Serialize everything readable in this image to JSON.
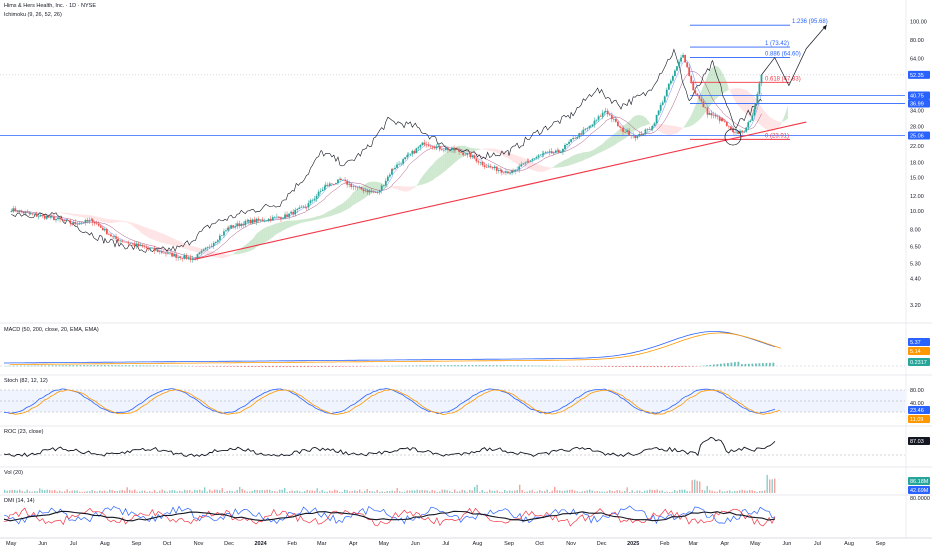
{
  "header": {
    "title": "Hims & Hers Health, Inc. · 1D · NYSE",
    "ichimoku": "Ichimoku (9, 26, 52, 26)"
  },
  "panels": {
    "macd": "MACD (50, 200, close, 20, EMA, EMA)",
    "stoch": "Stoch (82, 12, 12)",
    "roc": "ROC (23, close)",
    "vol": "Vol (20)",
    "dmi": "DMI (14, 14)"
  },
  "colors": {
    "up": "#26a69a",
    "down": "#ef5350",
    "blue": "#2962ff",
    "red": "#f23645",
    "orange": "#ff9800",
    "black": "#131722",
    "cloud_green": "#a5d6a7",
    "cloud_red": "#ffcdd2"
  },
  "chart_data": {
    "type": "candlestick",
    "scale": "log",
    "ylim": [
      2.6,
      130
    ],
    "x_ticks": [
      "May",
      "Jun",
      "Jul",
      "Aug",
      "Sep",
      "Oct",
      "Nov",
      "Dec",
      "2024",
      "Feb",
      "Mar",
      "Apr",
      "May",
      "Jun",
      "Jul",
      "Aug",
      "Sep",
      "Oct",
      "Nov",
      "Dec",
      "2025",
      "Feb",
      "Mar",
      "Apr",
      "May",
      "Jun",
      "Jul",
      "Aug",
      "Sep"
    ],
    "y_ticks": [
      "130.00",
      "100.00",
      "80.00",
      "64.00",
      "52.00",
      "34.00",
      "28.00",
      "22.00",
      "18.00",
      "15.00",
      "12.00",
      "10.00",
      "8.00",
      "6.50",
      "5.30",
      "4.40",
      "3.20"
    ],
    "price_anchors": [
      {
        "date": "2023-05-01",
        "close": 10.2
      },
      {
        "date": "2023-05-20",
        "close": 9.6
      },
      {
        "date": "2023-06-10",
        "close": 9.2
      },
      {
        "date": "2023-07-01",
        "close": 8.6
      },
      {
        "date": "2023-07-20",
        "close": 8.9
      },
      {
        "date": "2023-08-10",
        "close": 7.2
      },
      {
        "date": "2023-09-01",
        "close": 6.6
      },
      {
        "date": "2023-09-20",
        "close": 6.2
      },
      {
        "date": "2023-10-10",
        "close": 5.8
      },
      {
        "date": "2023-10-27",
        "close": 5.6
      },
      {
        "date": "2023-11-10",
        "close": 6.4
      },
      {
        "date": "2023-12-01",
        "close": 8.2
      },
      {
        "date": "2023-12-20",
        "close": 8.8
      },
      {
        "date": "2024-01-05",
        "close": 9.0
      },
      {
        "date": "2024-01-25",
        "close": 9.4
      },
      {
        "date": "2024-02-15",
        "close": 10.6
      },
      {
        "date": "2024-03-05",
        "close": 13.6
      },
      {
        "date": "2024-03-20",
        "close": 14.5
      },
      {
        "date": "2024-04-05",
        "close": 13.2
      },
      {
        "date": "2024-04-25",
        "close": 12.4
      },
      {
        "date": "2024-05-10",
        "close": 16.8
      },
      {
        "date": "2024-05-25",
        "close": 19.5
      },
      {
        "date": "2024-06-10",
        "close": 23.0
      },
      {
        "date": "2024-06-25",
        "close": 21.5
      },
      {
        "date": "2024-07-10",
        "close": 21.0
      },
      {
        "date": "2024-07-25",
        "close": 19.6
      },
      {
        "date": "2024-08-10",
        "close": 17.2
      },
      {
        "date": "2024-08-25",
        "close": 16.4
      },
      {
        "date": "2024-09-05",
        "close": 16.0
      },
      {
        "date": "2024-09-20",
        "close": 18.4
      },
      {
        "date": "2024-10-05",
        "close": 20.0
      },
      {
        "date": "2024-10-20",
        "close": 20.5
      },
      {
        "date": "2024-11-05",
        "close": 24.5
      },
      {
        "date": "2024-11-20",
        "close": 28.0
      },
      {
        "date": "2024-12-05",
        "close": 34.0
      },
      {
        "date": "2024-12-20",
        "close": 27.0
      },
      {
        "date": "2025-01-05",
        "close": 24.6
      },
      {
        "date": "2025-01-20",
        "close": 28.0
      },
      {
        "date": "2025-02-05",
        "close": 46.0
      },
      {
        "date": "2025-02-19",
        "close": 68.0
      },
      {
        "date": "2025-03-01",
        "close": 44.0
      },
      {
        "date": "2025-03-15",
        "close": 33.0
      },
      {
        "date": "2025-03-30",
        "close": 30.0
      },
      {
        "date": "2025-04-10",
        "close": 25.5
      },
      {
        "date": "2025-04-22",
        "close": 27.0
      },
      {
        "date": "2025-05-01",
        "close": 36.0
      },
      {
        "date": "2025-05-07",
        "close": 52.35
      }
    ],
    "compare_anchors": [
      {
        "date": "2023-05-01",
        "close": 9.8
      },
      {
        "date": "2023-06-15",
        "close": 9.4
      },
      {
        "date": "2023-08-01",
        "close": 7.0
      },
      {
        "date": "2023-09-15",
        "close": 6.1
      },
      {
        "date": "2023-10-15",
        "close": 6.4
      },
      {
        "date": "2023-11-15",
        "close": 8.6
      },
      {
        "date": "2023-12-15",
        "close": 9.8
      },
      {
        "date": "2024-01-20",
        "close": 11.0
      },
      {
        "date": "2024-02-15",
        "close": 15.5
      },
      {
        "date": "2024-03-01",
        "close": 20.5
      },
      {
        "date": "2024-03-25",
        "close": 17.5
      },
      {
        "date": "2024-04-15",
        "close": 21.5
      },
      {
        "date": "2024-05-05",
        "close": 30.0
      },
      {
        "date": "2024-06-01",
        "close": 28.0
      },
      {
        "date": "2024-07-01",
        "close": 22.0
      },
      {
        "date": "2024-08-01",
        "close": 19.5
      },
      {
        "date": "2024-09-01",
        "close": 20.5
      },
      {
        "date": "2024-10-01",
        "close": 26.5
      },
      {
        "date": "2024-11-01",
        "close": 32.0
      },
      {
        "date": "2024-11-25",
        "close": 44.0
      },
      {
        "date": "2024-12-20",
        "close": 36.0
      },
      {
        "date": "2025-01-15",
        "close": 42.0
      },
      {
        "date": "2025-02-10",
        "close": 70.0
      },
      {
        "date": "2025-02-25",
        "close": 38.0
      },
      {
        "date": "2025-03-20",
        "close": 60.0
      },
      {
        "date": "2025-04-10",
        "close": 28.0
      },
      {
        "date": "2025-05-07",
        "close": 38.0
      }
    ],
    "trendline": {
      "start": {
        "date": "2023-10-27",
        "price": 5.55
      },
      "end": {
        "date": "2025-06-20",
        "price": 29.5
      }
    },
    "fib_levels": [
      {
        "label": "1.236 (95.68)",
        "value": 95.68,
        "color": "#2962ff"
      },
      {
        "label": "1 (73.42)",
        "value": 73.42,
        "color": "#2962ff"
      },
      {
        "label": "0.886 (64.60)",
        "value": 64.6,
        "color": "#2962ff"
      },
      {
        "label": "0.618 (47.83)",
        "value": 47.83,
        "color": "#f23645"
      },
      {
        "label": "0 (23.91)",
        "value": 23.91,
        "color": "#f23645"
      }
    ],
    "horizontal_levels": [
      25.06,
      40.75,
      36.99
    ],
    "projection": [
      {
        "date": "2025-05-07",
        "price": 52.35
      },
      {
        "date": "2025-05-20",
        "price": 64.6
      },
      {
        "date": "2025-06-03",
        "price": 46.0
      },
      {
        "date": "2025-06-20",
        "price": 72.0
      },
      {
        "date": "2025-07-10",
        "price": 96.0
      }
    ],
    "price_badges": [
      {
        "label": "52.35",
        "value": 52.35,
        "color": "#2962ff"
      },
      {
        "label": "40.75",
        "value": 40.75,
        "color": "#2962ff"
      },
      {
        "label": "36.99",
        "value": 36.99,
        "color": "#2962ff"
      },
      {
        "label": "25.06",
        "value": 25.06,
        "color": "#2962ff"
      }
    ],
    "macd": {
      "label": "MACD (50, 200, close, 20, EMA, EMA)",
      "values": [
        "5.37",
        "5.14",
        "0.2317"
      ]
    },
    "stoch": {
      "label": "Stoch (82, 12, 12)",
      "levels": [
        "80.00",
        "40.00"
      ],
      "values": [
        "23.46",
        "11.09"
      ]
    },
    "roc": {
      "label": "ROC (23, close)",
      "value": "87.03"
    },
    "vol": {
      "label": "Vol (20)",
      "values": [
        "86.18M",
        "42.69M"
      ]
    },
    "dmi": {
      "label": "DMI (14, 14)",
      "value": "80.0000"
    }
  }
}
